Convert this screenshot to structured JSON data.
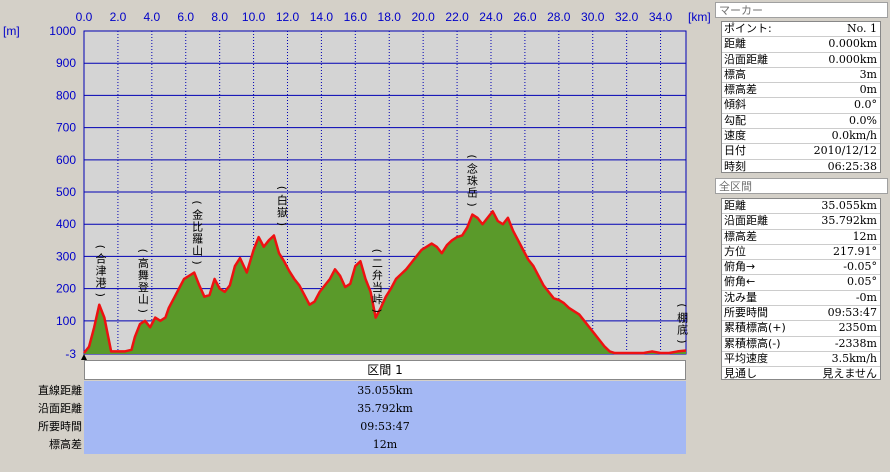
{
  "chart_data": {
    "type": "area",
    "x_unit": "[km]",
    "y_unit": "[m]",
    "xlim": [
      0,
      35.5
    ],
    "ylim": [
      -3,
      1000
    ],
    "x_ticks": [
      "0.0",
      "2.0",
      "4.0",
      "6.0",
      "8.0",
      "10.0",
      "12.0",
      "14.0",
      "16.0",
      "18.0",
      "20.0",
      "22.0",
      "24.0",
      "26.0",
      "28.0",
      "30.0",
      "32.0",
      "34.0"
    ],
    "y_ticks": [
      "1000",
      "900",
      "800",
      "700",
      "600",
      "500",
      "400",
      "300",
      "200",
      "100",
      "-3"
    ],
    "series": [
      {
        "name": "",
        "x": [
          0,
          0.3,
          0.6,
          0.9,
          1.2,
          1.6,
          2.0,
          2.4,
          2.8,
          3.0,
          3.3,
          3.6,
          3.9,
          4.2,
          4.5,
          4.8,
          5.0,
          5.3,
          5.6,
          5.9,
          6.2,
          6.5,
          6.8,
          7.1,
          7.4,
          7.7,
          8.0,
          8.3,
          8.6,
          8.9,
          9.2,
          9.6,
          10.0,
          10.3,
          10.6,
          10.9,
          11.2,
          11.5,
          11.8,
          12.1,
          12.4,
          12.7,
          13.0,
          13.3,
          13.6,
          13.9,
          14.2,
          14.5,
          14.8,
          15.1,
          15.4,
          15.7,
          16.0,
          16.3,
          16.6,
          16.9,
          17.2,
          17.5,
          17.8,
          18.1,
          18.4,
          18.7,
          19.0,
          19.3,
          19.6,
          19.9,
          20.2,
          20.5,
          20.8,
          21.1,
          21.4,
          21.7,
          22.0,
          22.3,
          22.6,
          22.9,
          23.2,
          23.5,
          23.8,
          24.1,
          24.4,
          24.7,
          25.0,
          25.3,
          25.6,
          25.9,
          26.2,
          26.5,
          26.8,
          27.1,
          27.4,
          27.7,
          28.0,
          28.3,
          28.6,
          28.9,
          29.2,
          29.5,
          29.8,
          30.1,
          30.4,
          30.7,
          31.0,
          31.3,
          31.6,
          32.0,
          32.5,
          33.0,
          33.5,
          34.0,
          34.5,
          35.0,
          35.5
        ],
        "y": [
          0,
          20,
          80,
          150,
          110,
          5,
          5,
          5,
          10,
          50,
          90,
          100,
          80,
          110,
          100,
          110,
          140,
          170,
          200,
          230,
          240,
          250,
          210,
          175,
          180,
          230,
          200,
          190,
          210,
          270,
          295,
          250,
          320,
          360,
          330,
          350,
          365,
          310,
          285,
          255,
          230,
          210,
          180,
          150,
          160,
          190,
          210,
          230,
          260,
          240,
          205,
          215,
          270,
          285,
          230,
          190,
          110,
          140,
          175,
          200,
          230,
          245,
          260,
          280,
          300,
          320,
          330,
          340,
          330,
          310,
          335,
          350,
          360,
          365,
          390,
          430,
          420,
          400,
          420,
          440,
          410,
          400,
          420,
          380,
          350,
          320,
          290,
          270,
          240,
          210,
          190,
          170,
          165,
          155,
          140,
          130,
          120,
          100,
          80,
          60,
          40,
          20,
          5,
          0,
          0,
          0,
          0,
          0,
          5,
          0,
          0,
          5,
          8
        ]
      }
    ],
    "peaks": [
      {
        "label": "(合津港)",
        "x": 1.0,
        "y": 150
      },
      {
        "label": "(高舞登山)",
        "x": 3.5,
        "y": 100
      },
      {
        "label": "(金比羅山)",
        "x": 6.7,
        "y": 250
      },
      {
        "label": "(白嶽)",
        "x": 11.7,
        "y": 370
      },
      {
        "label": "(二弁当峠)",
        "x": 17.3,
        "y": 100
      },
      {
        "label": "(念珠岳)",
        "x": 22.9,
        "y": 430
      },
      {
        "label": "(棚底)",
        "x": 35.3,
        "y": 5
      }
    ]
  },
  "section": {
    "title": "区間 1",
    "rows": [
      {
        "label": "直線距離",
        "value": "35.055km"
      },
      {
        "label": "沿面距離",
        "value": "35.792km"
      },
      {
        "label": "所要時間",
        "value": "09:53:47"
      },
      {
        "label": "標高差",
        "value": "12m"
      }
    ]
  },
  "marker": {
    "header": "マーカー",
    "rows": [
      {
        "k": "ポイント:",
        "v": "No. 1"
      },
      {
        "k": "距離",
        "v": "0.000km"
      },
      {
        "k": "沿面距離",
        "v": "0.000km"
      },
      {
        "k": "標高",
        "v": "3m"
      },
      {
        "k": "標高差",
        "v": "0m"
      },
      {
        "k": "傾斜",
        "v": "0.0°"
      },
      {
        "k": "勾配",
        "v": "0.0%"
      },
      {
        "k": "速度",
        "v": "0.0km/h"
      },
      {
        "k": "日付",
        "v": "2010/12/12"
      },
      {
        "k": "時刻",
        "v": "06:25:38"
      }
    ]
  },
  "whole": {
    "header": "全区間",
    "rows": [
      {
        "k": "距離",
        "v": "35.055km"
      },
      {
        "k": "沿面距離",
        "v": "35.792km"
      },
      {
        "k": "標高差",
        "v": "12m"
      },
      {
        "k": "方位",
        "v": "217.91°"
      },
      {
        "k": "俯角→",
        "v": "-0.05°"
      },
      {
        "k": "俯角←",
        "v": "0.05°"
      },
      {
        "k": "沈み量",
        "v": "-0m"
      },
      {
        "k": "所要時間",
        "v": "09:53:47"
      },
      {
        "k": "累積標高(+)",
        "v": "2350m"
      },
      {
        "k": "累積標高(-)",
        "v": "-2338m"
      },
      {
        "k": "平均速度",
        "v": "3.5km/h"
      },
      {
        "k": "見通し",
        "v": "見えません"
      }
    ]
  },
  "colors": {
    "fill": "#5a9a2a",
    "line": "#ee1111",
    "plot_bg": "#d4d4d4",
    "grid": "#0000b4",
    "panel": "#a4b8f4"
  }
}
